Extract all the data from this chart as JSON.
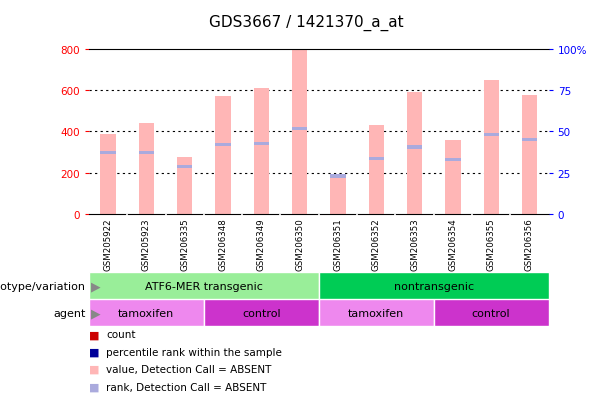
{
  "title": "GDS3667 / 1421370_a_at",
  "samples": [
    "GSM205922",
    "GSM205923",
    "GSM206335",
    "GSM206348",
    "GSM206349",
    "GSM206350",
    "GSM206351",
    "GSM206352",
    "GSM206353",
    "GSM206354",
    "GSM206355",
    "GSM206356"
  ],
  "bar_values": [
    390,
    440,
    275,
    570,
    610,
    800,
    190,
    430,
    590,
    360,
    650,
    575
  ],
  "rank_values": [
    300,
    300,
    230,
    335,
    340,
    415,
    185,
    270,
    325,
    265,
    385,
    360
  ],
  "bar_color": "#FFB6B6",
  "rank_color": "#AAAADD",
  "sample_bg_color": "#C8C8C8",
  "ylim_left": [
    0,
    800
  ],
  "ylim_right": [
    0,
    100
  ],
  "yticks_left": [
    0,
    200,
    400,
    600,
    800
  ],
  "yticks_right": [
    0,
    25,
    50,
    75,
    100
  ],
  "ytick_labels_right": [
    "0",
    "25",
    "50",
    "75",
    "100%"
  ],
  "genotype_groups": [
    {
      "label": "ATF6-MER transgenic",
      "start": 0,
      "end": 6,
      "color": "#99EE99"
    },
    {
      "label": "nontransgenic",
      "start": 6,
      "end": 12,
      "color": "#00CC55"
    }
  ],
  "agent_groups": [
    {
      "label": "tamoxifen",
      "start": 0,
      "end": 3,
      "color": "#EE88EE"
    },
    {
      "label": "control",
      "start": 3,
      "end": 6,
      "color": "#CC33CC"
    },
    {
      "label": "tamoxifen",
      "start": 6,
      "end": 9,
      "color": "#EE88EE"
    },
    {
      "label": "control",
      "start": 9,
      "end": 12,
      "color": "#CC33CC"
    }
  ],
  "legend_items": [
    {
      "label": "count",
      "color": "#CC0000"
    },
    {
      "label": "percentile rank within the sample",
      "color": "#000099"
    },
    {
      "label": "value, Detection Call = ABSENT",
      "color": "#FFB6B6"
    },
    {
      "label": "rank, Detection Call = ABSENT",
      "color": "#AAAADD"
    }
  ],
  "bar_width": 0.4,
  "background_color": "#FFFFFF",
  "label_genotype": "genotype/variation",
  "label_agent": "agent",
  "chart_bg": "#FFFFFF",
  "border_color": "#000000"
}
